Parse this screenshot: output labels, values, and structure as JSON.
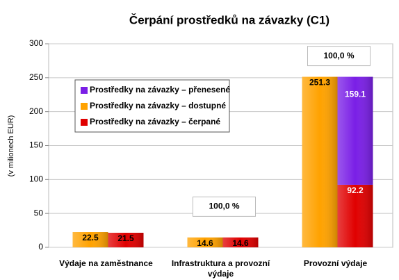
{
  "chart_data": {
    "type": "bar",
    "title": "Čerpání prostředků na závazky (C1)",
    "y_label": "(v milionech EUR)",
    "categories": [
      "Výdaje na zaměstnance",
      "Infrastruktura a provozní výdaje",
      "Provozní výdaje"
    ],
    "series": [
      {
        "name": "Prostředky na závazky – přenesené",
        "color": "#7a1fe6",
        "values": [
          null,
          null,
          159.1
        ]
      },
      {
        "name": "Prostředky na závazky – dostupné",
        "color": "#ffa200",
        "values": [
          22.5,
          14.6,
          251.3
        ]
      },
      {
        "name": "Prostředky na závazky – čerpané",
        "color": "#e00000",
        "values": [
          21.5,
          14.6,
          92.2
        ]
      }
    ],
    "annotations": [
      "100,0 %",
      "100,0 %"
    ],
    "ylim": [
      0,
      300
    ],
    "yticks": [
      0,
      50,
      100,
      150,
      200,
      250,
      300
    ],
    "grid": true
  }
}
